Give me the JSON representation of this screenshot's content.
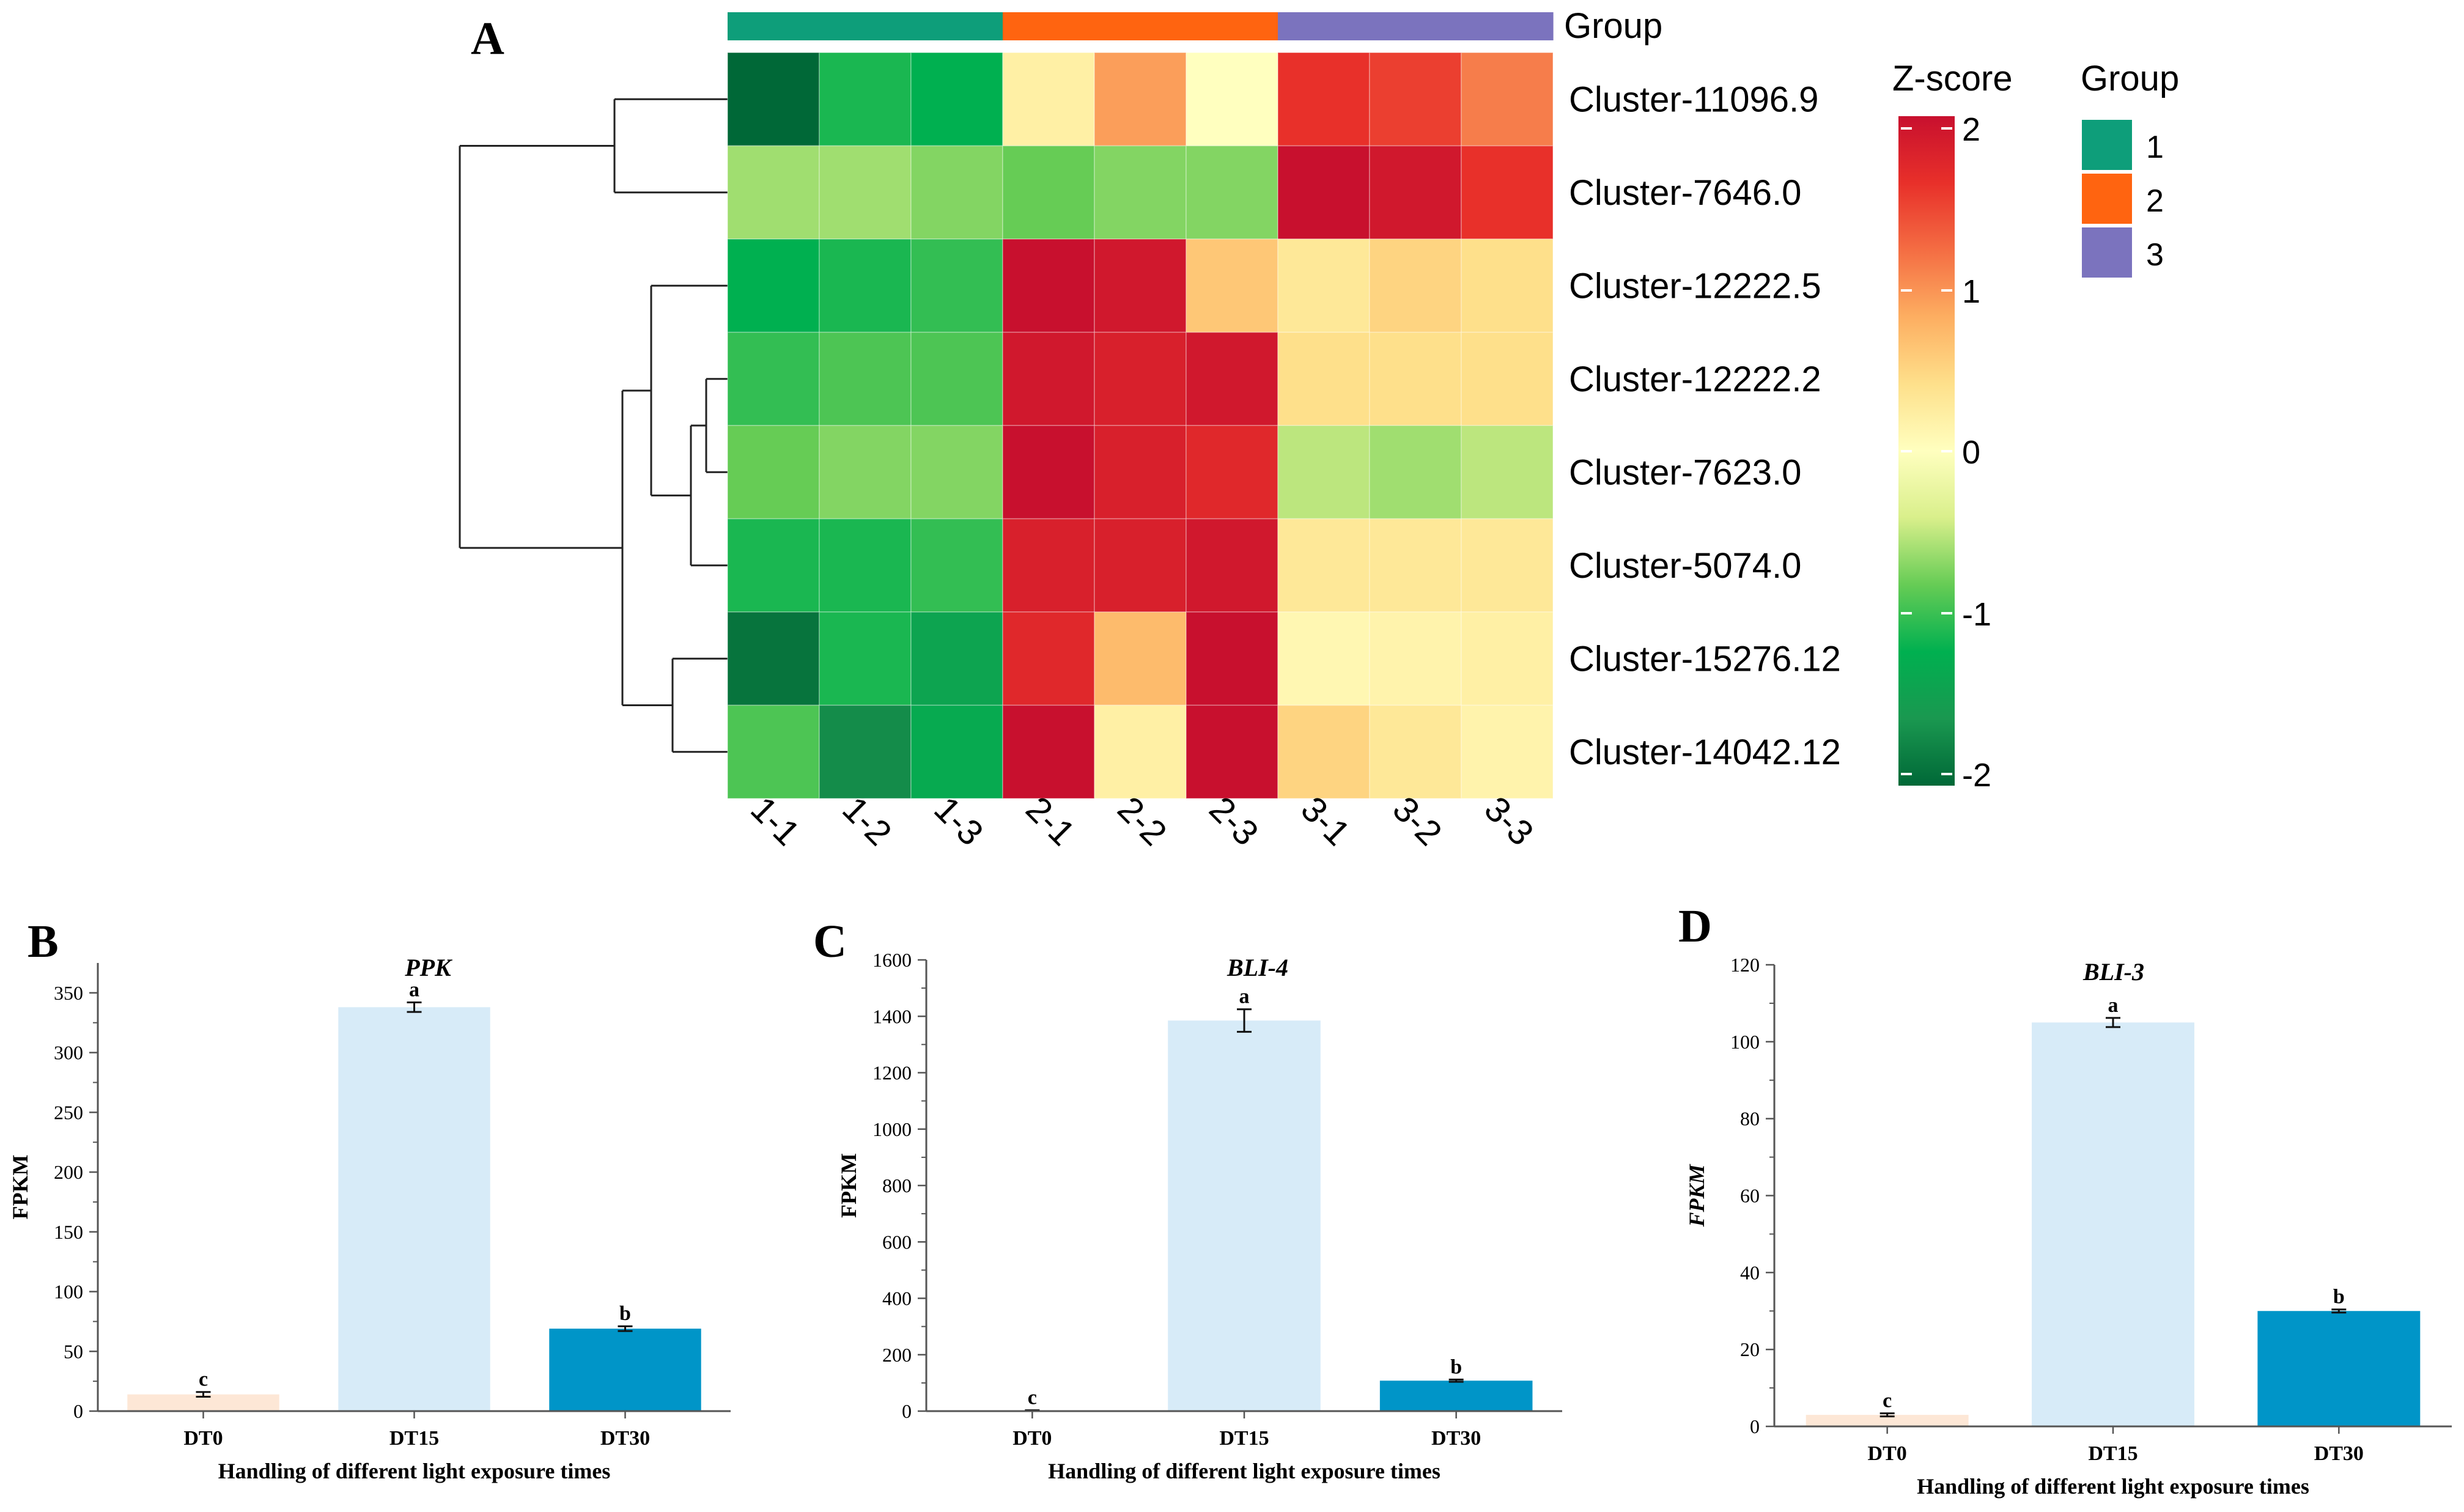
{
  "chart_data": [
    {
      "type": "heatmap",
      "panel_label": "A",
      "title": "",
      "rows": [
        "Cluster-11096.9",
        "Cluster-7646.0",
        "Cluster-12222.5",
        "Cluster-12222.2",
        "Cluster-7623.0",
        "Cluster-5074.0",
        "Cluster-15276.12",
        "Cluster-14042.12"
      ],
      "columns": [
        "1-1",
        "1-2",
        "1-3",
        "2-1",
        "2-2",
        "2-3",
        "3-1",
        "3-2",
        "3-3"
      ],
      "column_groups": [
        "1",
        "1",
        "1",
        "2",
        "2",
        "2",
        "3",
        "3",
        "3"
      ],
      "values": [
        [
          -2.0,
          -1.1,
          -1.2,
          0.2,
          0.9,
          0.0,
          1.6,
          1.5,
          1.1
        ],
        [
          -0.6,
          -0.6,
          -0.7,
          -0.8,
          -0.7,
          -0.7,
          2.0,
          1.9,
          1.6
        ],
        [
          -1.2,
          -1.1,
          -1.0,
          2.0,
          1.9,
          0.6,
          0.3,
          0.5,
          0.4
        ],
        [
          -1.0,
          -0.9,
          -0.9,
          1.9,
          1.8,
          1.9,
          0.4,
          0.4,
          0.4
        ],
        [
          -0.8,
          -0.7,
          -0.7,
          2.0,
          1.8,
          1.7,
          -0.5,
          -0.6,
          -0.5
        ],
        [
          -1.1,
          -1.1,
          -1.0,
          1.8,
          1.8,
          1.9,
          0.3,
          0.3,
          0.3
        ],
        [
          -1.9,
          -1.1,
          -1.4,
          1.7,
          0.7,
          2.0,
          0.1,
          0.15,
          0.2
        ],
        [
          -0.9,
          -1.7,
          -1.3,
          2.0,
          0.2,
          2.0,
          0.5,
          0.3,
          0.15
        ]
      ],
      "colorbar": {
        "title": "Z-score",
        "range": [
          -2,
          2
        ],
        "ticks": [
          "2",
          "1",
          "0",
          "-1",
          "-2"
        ],
        "colors": [
          "#006837",
          "#1a9850",
          "#00b050",
          "#66cc55",
          "#d9ef8b",
          "#ffffbf",
          "#fee08b",
          "#fdae61",
          "#f46d43",
          "#e8302a",
          "#c8102e"
        ]
      },
      "group_legend": {
        "title": "Group",
        "items": [
          {
            "label": "1",
            "color": "#0e9e7a"
          },
          {
            "label": "2",
            "color": "#ff6410"
          },
          {
            "label": "3",
            "color": "#7b73be"
          }
        ]
      },
      "group_bar_label": "Group"
    },
    {
      "type": "bar",
      "panel_label": "B",
      "title": "PPK",
      "categories": [
        "DT0",
        "DT15",
        "DT30"
      ],
      "values": [
        14,
        338,
        69
      ],
      "errors": [
        2,
        4,
        2
      ],
      "significance": [
        "c",
        "a",
        "b"
      ],
      "colors": [
        "#fde7d6",
        "#d7ebf8",
        "#0095c8"
      ],
      "xlabel": "Handling of different light exposure times",
      "ylabel": "FPKM",
      "ylim": [
        0,
        375
      ],
      "yticks": [
        0,
        50,
        100,
        150,
        200,
        250,
        300,
        350
      ]
    },
    {
      "type": "bar",
      "panel_label": "C",
      "title": "BLI-4",
      "categories": [
        "DT0",
        "DT15",
        "DT30"
      ],
      "values": [
        2,
        1385,
        108
      ],
      "errors": [
        1,
        40,
        4
      ],
      "significance": [
        "c",
        "a",
        "b"
      ],
      "colors": [
        "#fde7d6",
        "#d7ebf8",
        "#0095c8"
      ],
      "xlabel": "Handling of different light exposure times",
      "ylabel": "FPKM",
      "ylim": [
        0,
        1600
      ],
      "yticks": [
        0,
        200,
        400,
        600,
        800,
        1000,
        1200,
        1400,
        1600
      ]
    },
    {
      "type": "bar",
      "panel_label": "D",
      "title": "BLI-3",
      "categories": [
        "DT0",
        "DT15",
        "DT30"
      ],
      "values": [
        3,
        105,
        30
      ],
      "errors": [
        0.4,
        1.2,
        0.4
      ],
      "significance": [
        "c",
        "a",
        "b"
      ],
      "colors": [
        "#fde7d6",
        "#d7ebf8",
        "#0095c8"
      ],
      "xlabel": "Handling of different light exposure times",
      "ylabel": "FPKM",
      "ylim": [
        0,
        120
      ],
      "yticks": [
        0,
        20,
        40,
        60,
        80,
        100,
        120
      ]
    }
  ]
}
